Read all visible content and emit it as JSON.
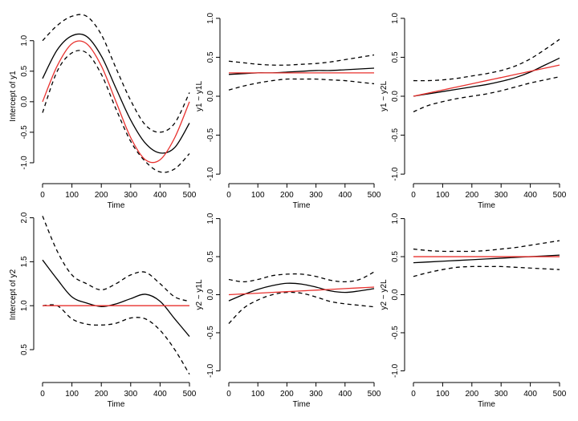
{
  "chart_data": [
    {
      "type": "line",
      "xlabel": "Time",
      "ylabel": "Intercept of y1",
      "x": [
        0,
        50,
        100,
        150,
        200,
        250,
        300,
        350,
        400,
        450,
        500
      ],
      "xlim": [
        0,
        500
      ],
      "xticks": [
        0,
        100,
        200,
        300,
        400,
        500
      ],
      "ylim": [
        -1.25,
        1.43
      ],
      "yticks": [
        {
          "value": -1,
          "label": "-1.0"
        },
        {
          "value": -0.5,
          "label": "-0.5"
        },
        {
          "value": 0,
          "label": "0.0"
        },
        {
          "value": 0.5,
          "label": "0.5"
        },
        {
          "value": 1,
          "label": "1.0"
        }
      ],
      "series": [
        {
          "color": "#000000",
          "dash": true,
          "values": [
            1.0,
            1.25,
            1.4,
            1.4,
            1.1,
            0.55,
            0.02,
            -0.38,
            -0.5,
            -0.35,
            0.15
          ]
        },
        {
          "color": "#000000",
          "dash": true,
          "values": [
            -0.18,
            0.5,
            0.8,
            0.8,
            0.45,
            -0.12,
            -0.65,
            -0.98,
            -1.15,
            -1.1,
            -0.85
          ]
        },
        {
          "color": "#000000",
          "dash": false,
          "values": [
            0.38,
            0.85,
            1.08,
            1.07,
            0.75,
            0.22,
            -0.3,
            -0.68,
            -0.84,
            -0.75,
            -0.35
          ]
        },
        {
          "color": "#e8312e",
          "dash": false,
          "values": [
            0,
            0.588,
            0.951,
            0.951,
            0.588,
            0,
            -0.588,
            -0.951,
            -0.951,
            -0.588,
            0
          ]
        }
      ]
    },
    {
      "type": "line",
      "xlabel": "Time",
      "ylabel": "y1 ~ y1L",
      "x": [
        0,
        50,
        100,
        150,
        200,
        250,
        300,
        350,
        400,
        450,
        500
      ],
      "xlim": [
        0,
        500
      ],
      "xticks": [
        0,
        100,
        200,
        300,
        400,
        500
      ],
      "ylim": [
        -1.05,
        1.05
      ],
      "yticks": [
        {
          "value": -1,
          "label": "-1.0"
        },
        {
          "value": -0.5,
          "label": "-0.5"
        },
        {
          "value": 0,
          "label": "0.0"
        },
        {
          "value": 0.5,
          "label": "0.5"
        },
        {
          "value": 1,
          "label": "1.0"
        }
      ],
      "series": [
        {
          "color": "#000000",
          "dash": true,
          "values": [
            0.45,
            0.43,
            0.41,
            0.4,
            0.4,
            0.41,
            0.42,
            0.44,
            0.47,
            0.5,
            0.53
          ]
        },
        {
          "color": "#000000",
          "dash": true,
          "values": [
            0.08,
            0.13,
            0.17,
            0.2,
            0.22,
            0.22,
            0.22,
            0.21,
            0.2,
            0.18,
            0.16
          ]
        },
        {
          "color": "#000000",
          "dash": false,
          "values": [
            0.28,
            0.29,
            0.3,
            0.3,
            0.31,
            0.32,
            0.33,
            0.33,
            0.34,
            0.35,
            0.36
          ]
        },
        {
          "color": "#e8312e",
          "dash": false,
          "values": [
            0.3,
            0.3,
            0.3,
            0.3,
            0.3,
            0.3,
            0.3,
            0.3,
            0.3,
            0.3,
            0.3
          ]
        }
      ]
    },
    {
      "type": "line",
      "xlabel": "Time",
      "ylabel": "y1 ~ y2L",
      "x": [
        0,
        50,
        100,
        150,
        200,
        250,
        300,
        350,
        400,
        450,
        500
      ],
      "xlim": [
        0,
        500
      ],
      "xticks": [
        0,
        100,
        200,
        300,
        400,
        500
      ],
      "ylim": [
        -1.05,
        1.05
      ],
      "yticks": [
        {
          "value": -1,
          "label": "-1.0"
        },
        {
          "value": -0.5,
          "label": "-0.5"
        },
        {
          "value": 0,
          "label": "0.0"
        },
        {
          "value": 0.5,
          "label": "0.5"
        },
        {
          "value": 1,
          "label": "1.0"
        }
      ],
      "series": [
        {
          "color": "#000000",
          "dash": true,
          "values": [
            0.2,
            0.2,
            0.21,
            0.23,
            0.26,
            0.29,
            0.33,
            0.39,
            0.48,
            0.6,
            0.73
          ]
        },
        {
          "color": "#000000",
          "dash": true,
          "values": [
            -0.2,
            -0.12,
            -0.07,
            -0.03,
            0.0,
            0.03,
            0.07,
            0.12,
            0.17,
            0.21,
            0.25
          ]
        },
        {
          "color": "#000000",
          "dash": false,
          "values": [
            0,
            0.03,
            0.06,
            0.09,
            0.12,
            0.15,
            0.19,
            0.24,
            0.31,
            0.4,
            0.49
          ]
        },
        {
          "color": "#e8312e",
          "dash": false,
          "values": [
            0,
            0.04,
            0.08,
            0.12,
            0.16,
            0.2,
            0.24,
            0.28,
            0.32,
            0.36,
            0.4
          ]
        }
      ]
    },
    {
      "type": "line",
      "xlabel": "Time",
      "ylabel": "Intercept of y2",
      "x": [
        0,
        50,
        100,
        150,
        200,
        250,
        300,
        350,
        400,
        450,
        500
      ],
      "xlim": [
        0,
        500
      ],
      "xticks": [
        0,
        100,
        200,
        300,
        400,
        500
      ],
      "ylim": [
        0.19,
        2.06
      ],
      "yticks": [
        {
          "value": 0.5,
          "label": "0.5"
        },
        {
          "value": 1,
          "label": "1.0"
        },
        {
          "value": 1.5,
          "label": "1.5"
        },
        {
          "value": 2,
          "label": "2.0"
        }
      ],
      "series": [
        {
          "color": "#000000",
          "dash": true,
          "values": [
            2.02,
            1.62,
            1.35,
            1.25,
            1.18,
            1.25,
            1.35,
            1.38,
            1.25,
            1.1,
            1.05
          ]
        },
        {
          "color": "#000000",
          "dash": true,
          "values": [
            1.0,
            1.0,
            0.85,
            0.79,
            0.78,
            0.8,
            0.86,
            0.85,
            0.72,
            0.5,
            0.22
          ]
        },
        {
          "color": "#000000",
          "dash": false,
          "values": [
            1.52,
            1.3,
            1.1,
            1.03,
            0.99,
            1.02,
            1.08,
            1.13,
            1.05,
            0.85,
            0.65
          ]
        },
        {
          "color": "#e8312e",
          "dash": false,
          "values": [
            1,
            1,
            1,
            1,
            1,
            1,
            1,
            1,
            1,
            1,
            1
          ]
        }
      ]
    },
    {
      "type": "line",
      "xlabel": "Time",
      "ylabel": "y2 ~ y1L",
      "x": [
        0,
        50,
        100,
        150,
        200,
        250,
        300,
        350,
        400,
        450,
        500
      ],
      "xlim": [
        0,
        500
      ],
      "xticks": [
        0,
        100,
        200,
        300,
        400,
        500
      ],
      "ylim": [
        -1.08,
        1.08
      ],
      "yticks": [
        {
          "value": -1,
          "label": "-1.0"
        },
        {
          "value": -0.5,
          "label": "-0.5"
        },
        {
          "value": 0,
          "label": "0.0"
        },
        {
          "value": 0.5,
          "label": "0.5"
        },
        {
          "value": 1,
          "label": "1.0"
        }
      ],
      "series": [
        {
          "color": "#000000",
          "dash": true,
          "values": [
            0.2,
            0.17,
            0.2,
            0.25,
            0.27,
            0.27,
            0.24,
            0.19,
            0.17,
            0.2,
            0.3
          ]
        },
        {
          "color": "#000000",
          "dash": true,
          "values": [
            -0.38,
            -0.18,
            -0.07,
            0.0,
            0.03,
            0.02,
            -0.03,
            -0.09,
            -0.12,
            -0.14,
            -0.16
          ]
        },
        {
          "color": "#000000",
          "dash": false,
          "values": [
            -0.08,
            0.0,
            0.07,
            0.12,
            0.15,
            0.14,
            0.1,
            0.05,
            0.03,
            0.05,
            0.08
          ]
        },
        {
          "color": "#e8312e",
          "dash": false,
          "values": [
            0,
            0.01,
            0.02,
            0.03,
            0.04,
            0.05,
            0.06,
            0.07,
            0.08,
            0.09,
            0.1
          ]
        }
      ]
    },
    {
      "type": "line",
      "xlabel": "Time",
      "ylabel": "y2 ~ y2L",
      "x": [
        0,
        50,
        100,
        150,
        200,
        250,
        300,
        350,
        400,
        450,
        500
      ],
      "xlim": [
        0,
        500
      ],
      "xticks": [
        0,
        100,
        200,
        300,
        400,
        500
      ],
      "ylim": [
        -1.08,
        1.08
      ],
      "yticks": [
        {
          "value": -1,
          "label": "-1.0"
        },
        {
          "value": -0.5,
          "label": "-0.5"
        },
        {
          "value": 0,
          "label": "0.0"
        },
        {
          "value": 0.5,
          "label": "0.5"
        },
        {
          "value": 1,
          "label": "1.0"
        }
      ],
      "series": [
        {
          "color": "#000000",
          "dash": true,
          "values": [
            0.6,
            0.58,
            0.57,
            0.57,
            0.57,
            0.58,
            0.6,
            0.62,
            0.65,
            0.68,
            0.71
          ]
        },
        {
          "color": "#000000",
          "dash": true,
          "values": [
            0.24,
            0.29,
            0.33,
            0.36,
            0.37,
            0.37,
            0.37,
            0.36,
            0.35,
            0.34,
            0.33
          ]
        },
        {
          "color": "#000000",
          "dash": false,
          "values": [
            0.42,
            0.43,
            0.44,
            0.45,
            0.46,
            0.47,
            0.48,
            0.49,
            0.5,
            0.51,
            0.52
          ]
        },
        {
          "color": "#e8312e",
          "dash": false,
          "values": [
            0.5,
            0.5,
            0.5,
            0.5,
            0.5,
            0.5,
            0.5,
            0.5,
            0.5,
            0.5,
            0.5
          ]
        }
      ]
    }
  ]
}
